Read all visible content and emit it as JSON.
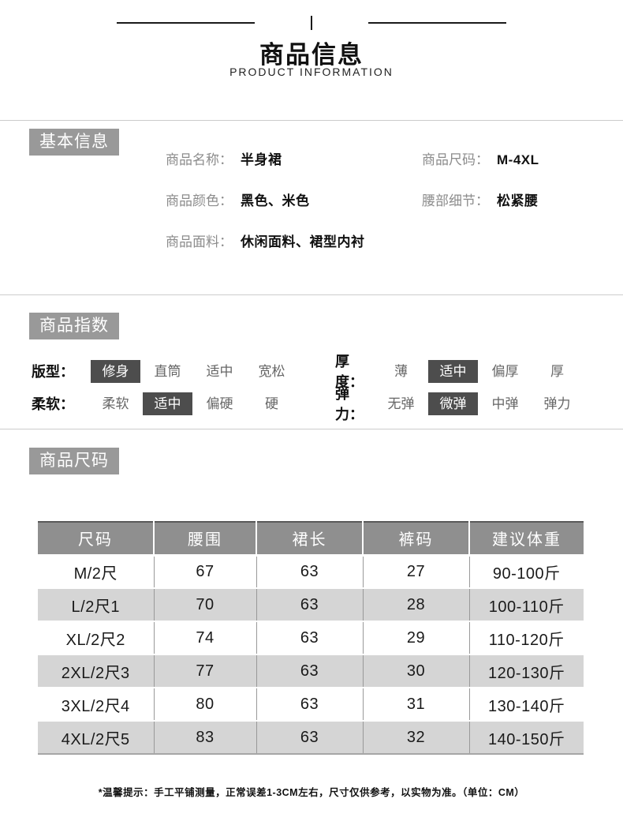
{
  "header": {
    "title": "商品信息",
    "subtitle": "PRODUCT INFORMATION"
  },
  "basic_info": {
    "section_label": "基本信息",
    "fields": [
      {
        "label": "商品名称：",
        "value": "半身裙"
      },
      {
        "label": "商品尺码：",
        "value": "M-4XL"
      },
      {
        "label": "商品颜色：",
        "value": "黑色、米色"
      },
      {
        "label": "腰部细节：",
        "value": "松紧腰"
      },
      {
        "label": "商品面料：",
        "value": "休闲面料、裙型内衬"
      }
    ]
  },
  "index_section": {
    "section_label": "商品指数",
    "rows": [
      {
        "label": "版型：",
        "options": [
          "修身",
          "直筒",
          "适中",
          "宽松"
        ],
        "selected": 0
      },
      {
        "label": "厚度：",
        "options": [
          "薄",
          "适中",
          "偏厚",
          "厚"
        ],
        "selected": 1
      },
      {
        "label": "柔软：",
        "options": [
          "柔软",
          "适中",
          "偏硬",
          "硬"
        ],
        "selected": 1
      },
      {
        "label": "弹力：",
        "options": [
          "无弹",
          "微弹",
          "中弹",
          "弹力"
        ],
        "selected": 1
      }
    ]
  },
  "size_section": {
    "section_label": "商品尺码",
    "table": {
      "headers": [
        "尺码",
        "腰围",
        "裙长",
        "裤码",
        "建议体重"
      ],
      "rows": [
        [
          "M/2尺",
          "67",
          "63",
          "27",
          "90-100斤"
        ],
        [
          "L/2尺1",
          "70",
          "63",
          "28",
          "100-110斤"
        ],
        [
          "XL/2尺2",
          "74",
          "63",
          "29",
          "110-120斤"
        ],
        [
          "2XL/2尺3",
          "77",
          "63",
          "30",
          "120-130斤"
        ],
        [
          "3XL/2尺4",
          "80",
          "63",
          "31",
          "130-140斤"
        ],
        [
          "4XL/2尺5",
          "83",
          "63",
          "32",
          "140-150斤"
        ]
      ]
    }
  },
  "footer": {
    "note": "*温馨提示：手工平铺测量，正常误差1-3CM左右，尺寸仅供参考，以实物为准。（单位：CM）"
  },
  "colors": {
    "section_label_bg": "#999999",
    "selected_option_bg": "#4d4d4d",
    "table_header_bg": "#8f8f8f",
    "table_row_alt_bg": "#d5d5d5",
    "divider": "#cccccc",
    "text_primary": "#111111",
    "text_secondary": "#8c8c8c"
  }
}
